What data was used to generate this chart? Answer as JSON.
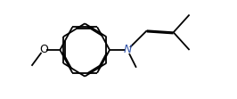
{
  "background": "#ffffff",
  "line_color": "#000000",
  "n_color": "#3355aa",
  "o_color": "#000000",
  "lw": 1.3,
  "dbo": 0.012,
  "fs": 9,
  "fig_w": 2.66,
  "fig_h": 1.11,
  "dpi": 100
}
